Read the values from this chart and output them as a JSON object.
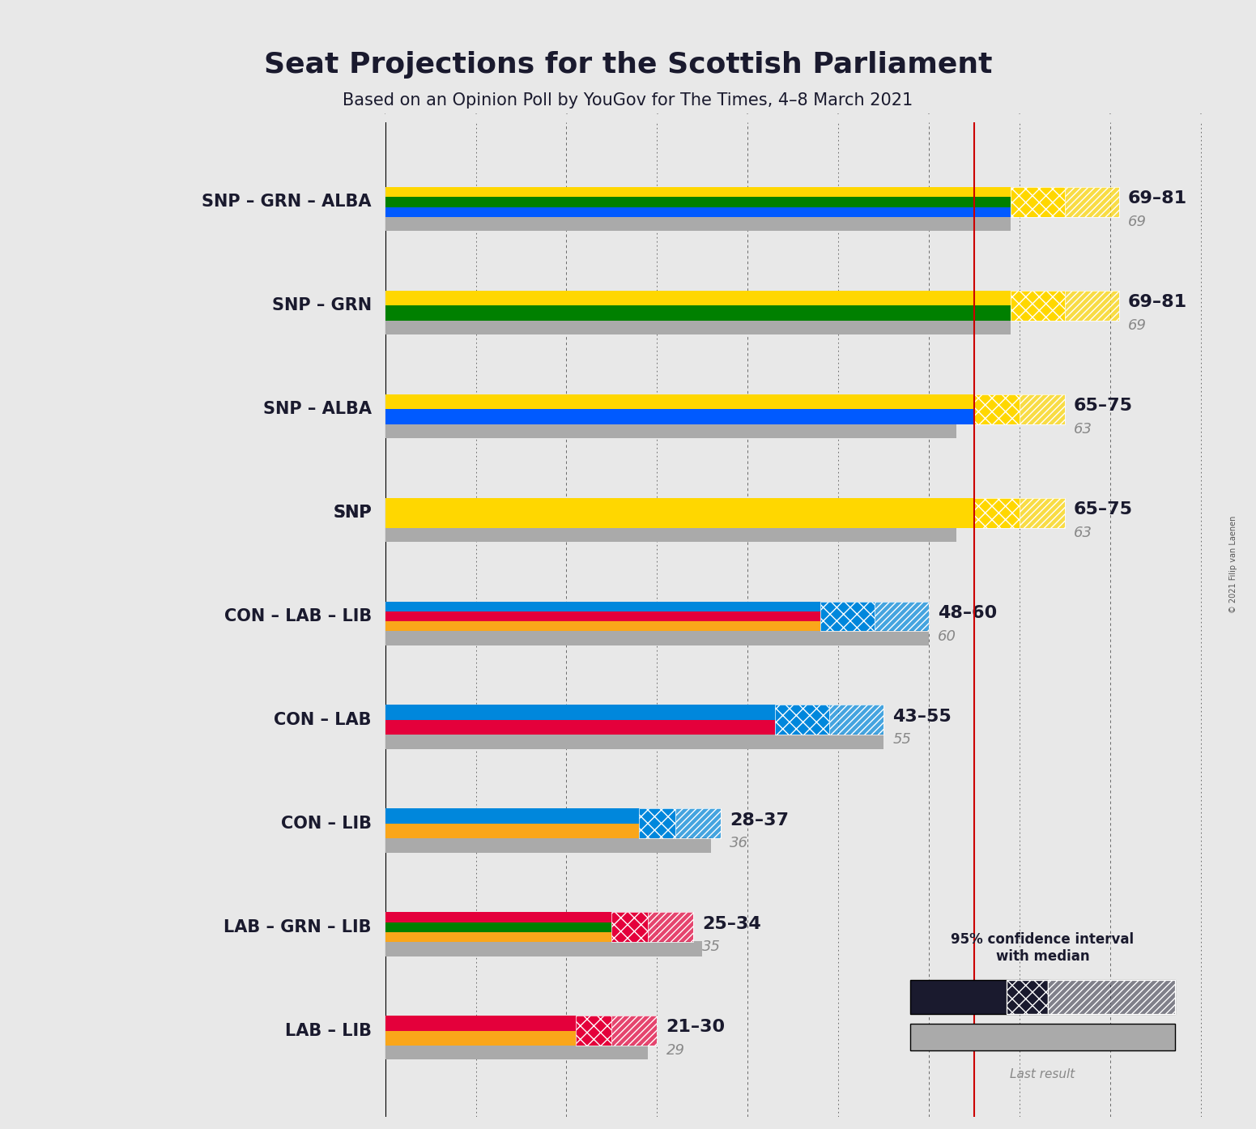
{
  "title": "Seat Projections for the Scottish Parliament",
  "subtitle": "Based on an Opinion Poll by YouGov for The Times, 4–8 March 2021",
  "copyright": "© 2021 Filip van Laenen",
  "background_color": "#e8e8e8",
  "majority_line": 65,
  "x_ticks": [
    0,
    10,
    20,
    30,
    40,
    50,
    60,
    70,
    80,
    90
  ],
  "coalitions": [
    {
      "name": "SNP – GRN – ALBA",
      "median": 75,
      "ci_low": 69,
      "ci_high": 81,
      "last_result": 69,
      "colors": [
        "#FFD700",
        "#008000",
        "#005AFF"
      ],
      "label": "69–81",
      "label_last": "69"
    },
    {
      "name": "SNP – GRN",
      "median": 75,
      "ci_low": 69,
      "ci_high": 81,
      "last_result": 69,
      "colors": [
        "#FFD700",
        "#008000"
      ],
      "label": "69–81",
      "label_last": "69"
    },
    {
      "name": "SNP – ALBA",
      "median": 70,
      "ci_low": 65,
      "ci_high": 75,
      "last_result": 63,
      "colors": [
        "#FFD700",
        "#005AFF"
      ],
      "label": "65–75",
      "label_last": "63"
    },
    {
      "name": "SNP",
      "median": 70,
      "ci_low": 65,
      "ci_high": 75,
      "last_result": 63,
      "colors": [
        "#FFD700"
      ],
      "label": "65–75",
      "label_last": "63",
      "underline": true
    },
    {
      "name": "CON – LAB – LIB",
      "median": 54,
      "ci_low": 48,
      "ci_high": 60,
      "last_result": 60,
      "colors": [
        "#0087DC",
        "#E4003B",
        "#FAA61A"
      ],
      "label": "48–60",
      "label_last": "60"
    },
    {
      "name": "CON – LAB",
      "median": 49,
      "ci_low": 43,
      "ci_high": 55,
      "last_result": 55,
      "colors": [
        "#0087DC",
        "#E4003B"
      ],
      "label": "43–55",
      "label_last": "55"
    },
    {
      "name": "CON – LIB",
      "median": 32,
      "ci_low": 28,
      "ci_high": 37,
      "last_result": 36,
      "colors": [
        "#0087DC",
        "#FAA61A"
      ],
      "label": "28–37",
      "label_last": "36"
    },
    {
      "name": "LAB – GRN – LIB",
      "median": 29,
      "ci_low": 25,
      "ci_high": 34,
      "last_result": 35,
      "colors": [
        "#E4003B",
        "#008000",
        "#FAA61A"
      ],
      "label": "25–34",
      "label_last": "35"
    },
    {
      "name": "LAB – LIB",
      "median": 25,
      "ci_low": 21,
      "ci_high": 30,
      "last_result": 29,
      "colors": [
        "#E4003B",
        "#FAA61A"
      ],
      "label": "21–30",
      "label_last": "29"
    }
  ]
}
